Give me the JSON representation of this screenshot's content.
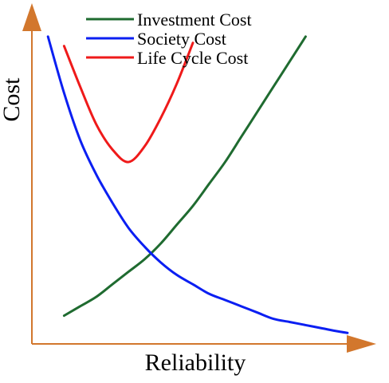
{
  "chart_data": {
    "type": "line",
    "xlabel": "Reliability",
    "ylabel": "Cost",
    "xlim": [
      0,
      1
    ],
    "ylim": [
      0,
      1
    ],
    "grid": false,
    "axis_ticks": false,
    "legend_position": "top-center",
    "axis_color": "#d2772d",
    "x": [
      0.02,
      0.05,
      0.1,
      0.15,
      0.2,
      0.25,
      0.3,
      0.35,
      0.4,
      0.45,
      0.5,
      0.55,
      0.6,
      0.65,
      0.7,
      0.75,
      0.8,
      0.85,
      0.9,
      0.95,
      0.98
    ],
    "series": [
      {
        "name": "Investment Cost",
        "color": "#1f6b30",
        "values": [
          null,
          null,
          0.09,
          0.12,
          0.15,
          0.19,
          0.23,
          0.27,
          0.32,
          0.38,
          0.44,
          0.51,
          0.58,
          0.66,
          0.74,
          0.82,
          0.9,
          0.98,
          null,
          null,
          null
        ]
      },
      {
        "name": "Society Cost",
        "color": "#0b1ff2",
        "values": [
          null,
          0.98,
          0.8,
          0.65,
          0.54,
          0.45,
          0.37,
          0.31,
          0.26,
          0.22,
          0.19,
          0.16,
          0.14,
          0.12,
          0.1,
          0.08,
          0.07,
          0.06,
          0.05,
          0.04,
          0.035
        ]
      },
      {
        "name": "Life Cycle Cost",
        "color": "#ef1a1a",
        "values": [
          null,
          null,
          0.95,
          0.82,
          0.7,
          0.62,
          0.58,
          0.63,
          0.72,
          0.83,
          0.96,
          null,
          null,
          null,
          null,
          null,
          null,
          null,
          null,
          null,
          null
        ]
      }
    ]
  }
}
